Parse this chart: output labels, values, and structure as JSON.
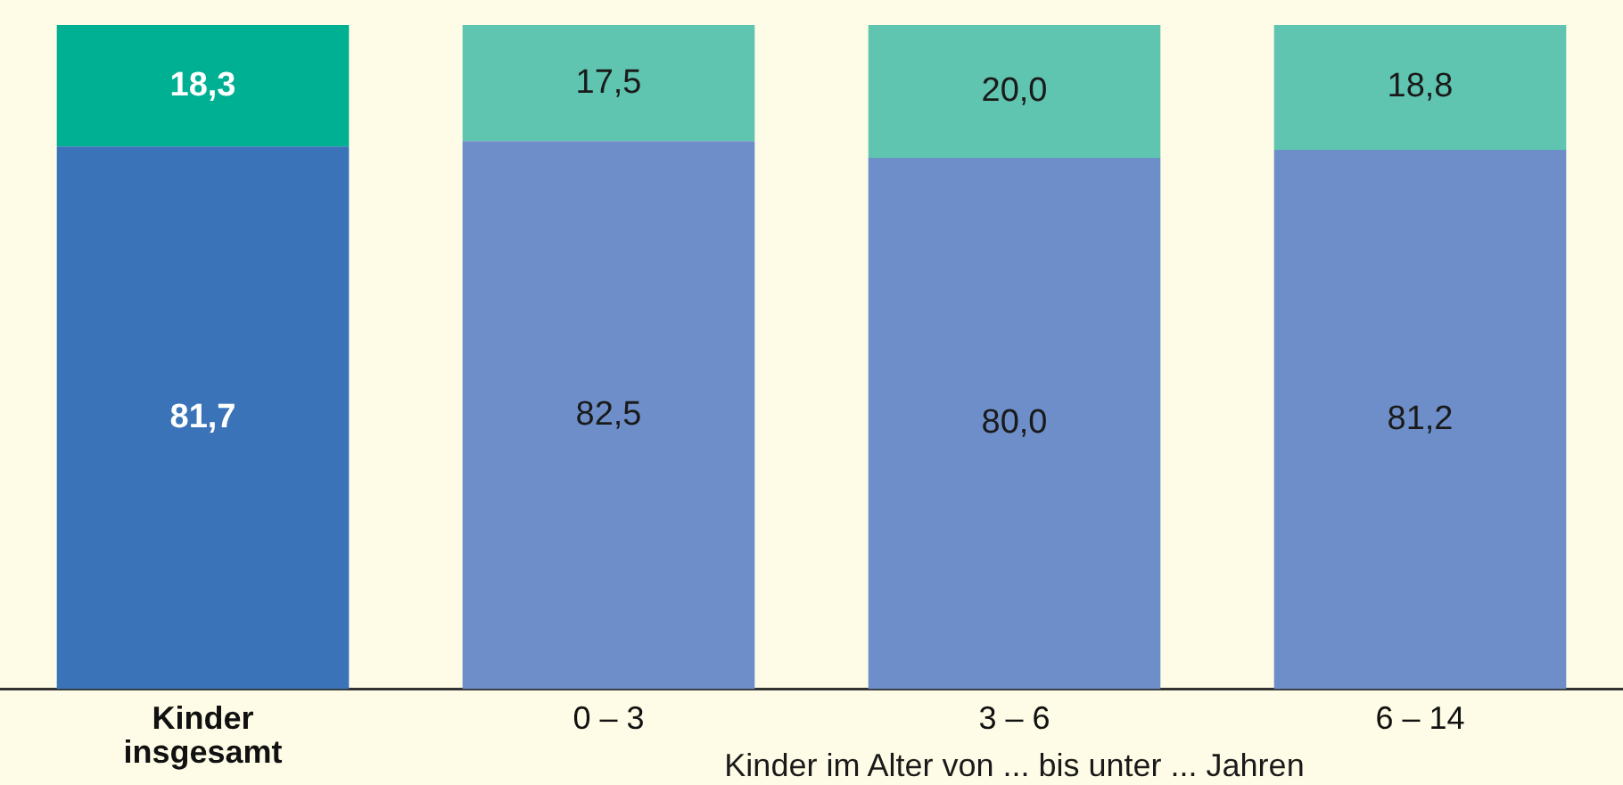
{
  "chart_data": {
    "type": "bar",
    "stacked": true,
    "categories": [
      "Kinder\ninsgesamt",
      "0 – 3",
      "3 – 6",
      "6 – 14"
    ],
    "xlabel": "Kinder im Alter von ... bis unter ... Jahren",
    "ylim": [
      0,
      100
    ],
    "tick_labels": "x",
    "legend": false,
    "grid": false,
    "series": [
      {
        "colors": [
          "#3a73b8",
          "#6d8ec8",
          "#6d8ec8",
          "#6d8ec8"
        ],
        "values": [
          81.7,
          82.5,
          80.0,
          81.2
        ],
        "value_labels": [
          "81,7",
          "82,5",
          "80,0",
          "81,2"
        ]
      },
      {
        "colors": [
          "#00b092",
          "#5fc4b0",
          "#5fc4b0",
          "#5fc4b0"
        ],
        "values": [
          18.3,
          17.5,
          20.0,
          18.8
        ],
        "value_labels": [
          "18,3",
          "17,5",
          "20,0",
          "18,8"
        ]
      }
    ]
  }
}
